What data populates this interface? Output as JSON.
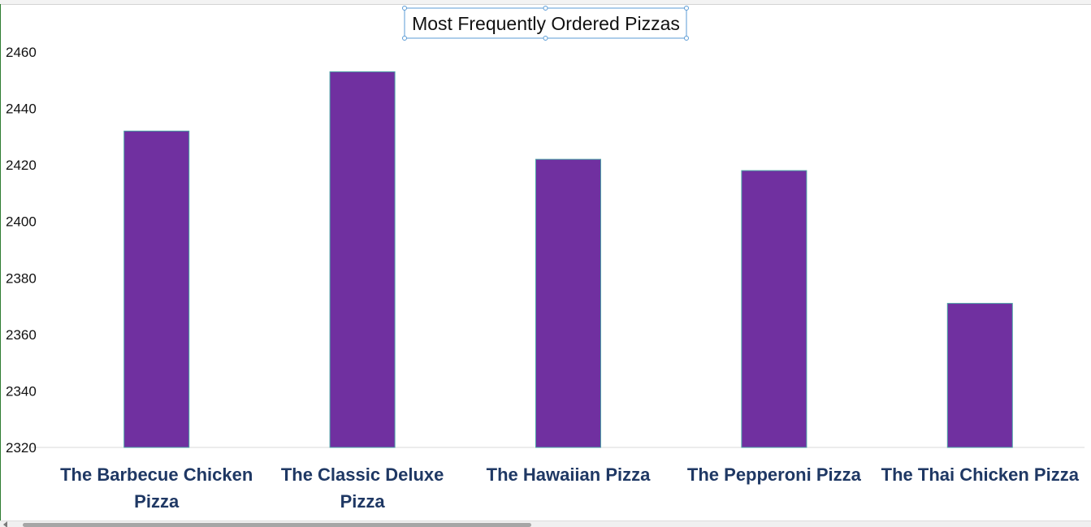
{
  "chart_data": {
    "type": "bar",
    "title": "Most Frequently Ordered Pizzas",
    "categories": [
      "The Barbecue Chicken Pizza",
      "The Classic Deluxe Pizza",
      "The Hawaiian Pizza",
      "The Pepperoni Pizza",
      "The Thai Chicken Pizza"
    ],
    "category_lines": [
      [
        "The Barbecue Chicken",
        "Pizza"
      ],
      [
        "The Classic Deluxe",
        "Pizza"
      ],
      [
        "The Hawaiian Pizza"
      ],
      [
        "The Pepperoni Pizza"
      ],
      [
        "The Thai Chicken Pizza"
      ]
    ],
    "values": [
      2432,
      2453,
      2422,
      2418,
      2371
    ],
    "ylim": [
      2320,
      2460
    ],
    "yticks": [
      2320,
      2340,
      2360,
      2380,
      2400,
      2420,
      2440,
      2460
    ],
    "xlabel": "",
    "ylabel": "",
    "grid": false,
    "legend": "none",
    "bar_color": "#7030a0",
    "bar_edge_color": "#4ba3a6",
    "label_color": "#1f3864",
    "selection_color": "#5b9bd5"
  }
}
